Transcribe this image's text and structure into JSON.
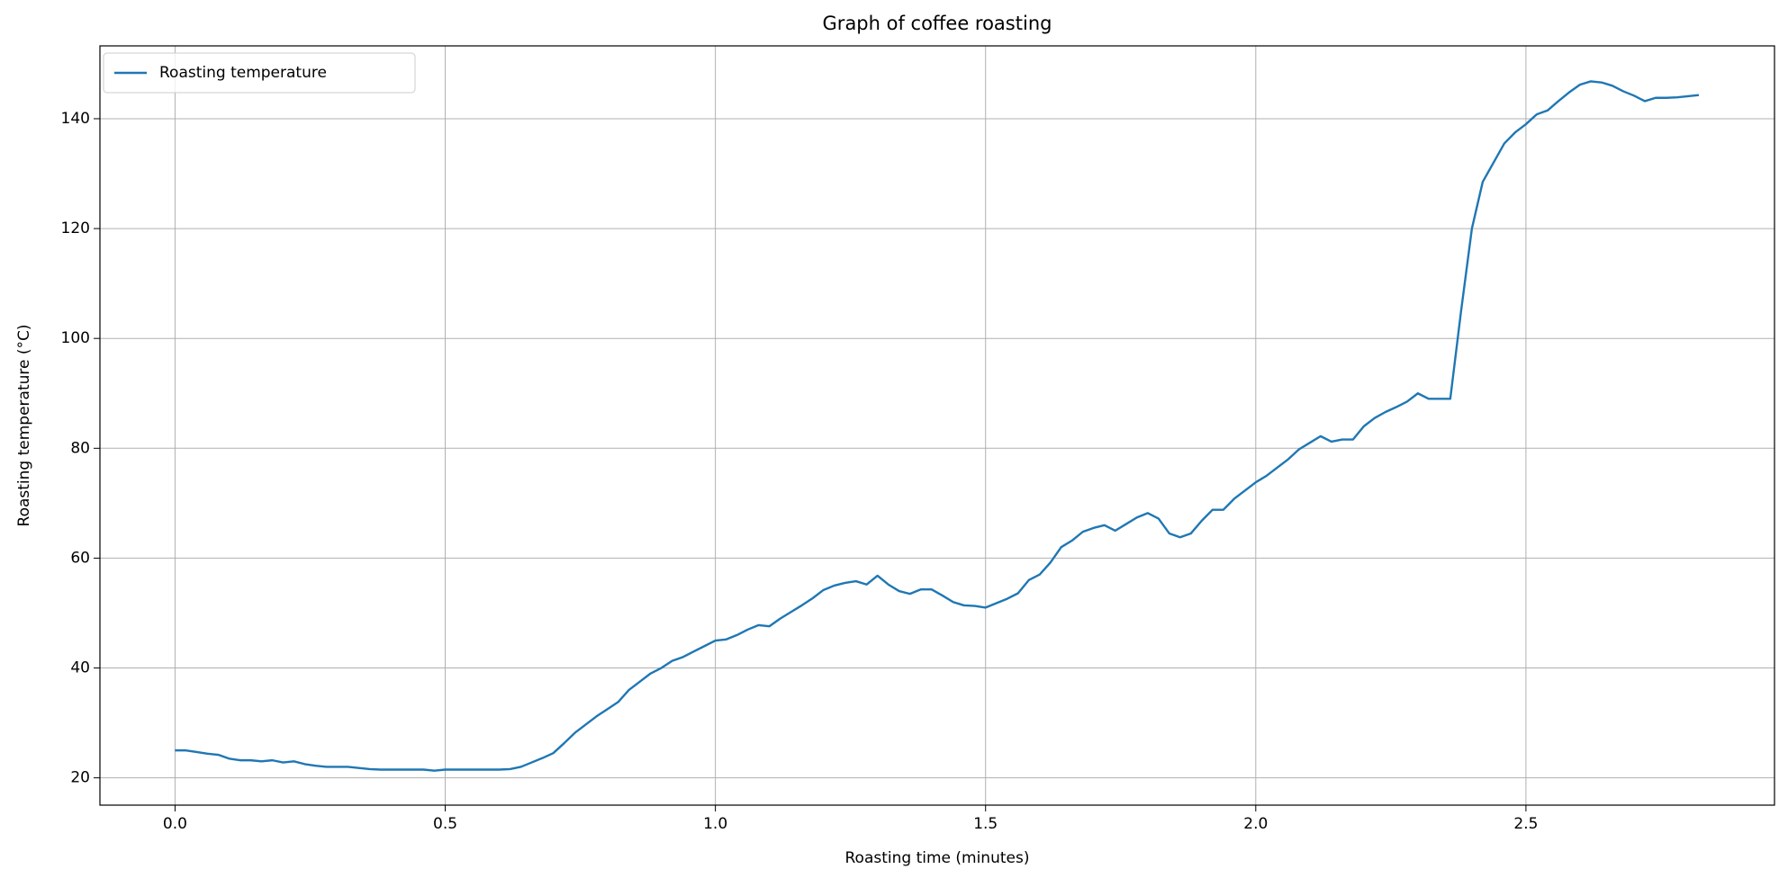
{
  "chart_data": {
    "type": "line",
    "title": "Graph of coffee roasting",
    "x_label": "Roasting time (minutes)",
    "y_label": "Roasting temperature (°C)",
    "x": [
      0,
      0.02,
      0.04,
      0.06,
      0.08,
      0.1,
      0.12,
      0.14,
      0.16,
      0.18,
      0.2,
      0.22,
      0.24,
      0.26,
      0.28,
      0.3,
      0.32,
      0.34,
      0.36,
      0.38,
      0.4,
      0.42,
      0.44,
      0.46,
      0.48,
      0.5,
      0.52,
      0.54,
      0.56,
      0.58,
      0.6,
      0.62,
      0.64,
      0.66,
      0.68,
      0.7,
      0.72,
      0.74,
      0.76,
      0.78,
      0.8,
      0.82,
      0.84,
      0.86,
      0.88,
      0.9,
      0.92,
      0.94,
      0.96,
      0.98,
      1,
      1.02,
      1.04,
      1.06,
      1.08,
      1.1,
      1.12,
      1.14,
      1.16,
      1.18,
      1.2,
      1.22,
      1.24,
      1.26,
      1.28,
      1.3,
      1.32,
      1.34,
      1.36,
      1.38,
      1.4,
      1.42,
      1.44,
      1.46,
      1.48,
      1.5,
      1.52,
      1.54,
      1.56,
      1.58,
      1.6,
      1.62,
      1.64,
      1.66,
      1.68,
      1.7,
      1.72,
      1.74,
      1.76,
      1.78,
      1.8,
      1.82,
      1.84,
      1.86,
      1.88,
      1.9,
      1.92,
      1.94,
      1.96,
      1.98,
      2,
      2.02,
      2.04,
      2.06,
      2.08,
      2.1,
      2.12,
      2.14,
      2.16,
      2.18,
      2.2,
      2.22,
      2.24,
      2.26,
      2.28,
      2.3,
      2.32,
      2.34,
      2.36,
      2.38,
      2.4,
      2.42,
      2.44,
      2.46,
      2.48,
      2.5,
      2.52,
      2.54,
      2.56,
      2.58,
      2.6,
      2.62,
      2.64,
      2.66,
      2.68,
      2.7,
      2.72,
      2.74,
      2.76,
      2.78,
      2.8,
      2.82
    ],
    "series": [
      {
        "name": "Roasting temperature",
        "color": "#1f77b4",
        "values": [
          25,
          25,
          24.7,
          24.4,
          24.2,
          23.5,
          23.2,
          23.2,
          23,
          23.2,
          22.8,
          23,
          22.5,
          22.2,
          22,
          22,
          22,
          21.8,
          21.6,
          21.5,
          21.5,
          21.5,
          21.5,
          21.5,
          21.3,
          21.5,
          21.5,
          21.5,
          21.5,
          21.5,
          21.5,
          21.6,
          22,
          22.8,
          23.6,
          24.5,
          26.3,
          28.2,
          29.7,
          31.2,
          32.5,
          33.8,
          36,
          37.5,
          39,
          40,
          41.3,
          42,
          43,
          44,
          45,
          45.2,
          46,
          47,
          47.8,
          47.6,
          49,
          50.2,
          51.4,
          52.7,
          54.2,
          55,
          55.5,
          55.8,
          55.2,
          56.8,
          55.2,
          54,
          53.5,
          54.3,
          54.3,
          53.2,
          52,
          51.4,
          51.3,
          51,
          51.8,
          52.6,
          53.6,
          56,
          57,
          59.2,
          62,
          63.2,
          64.8,
          65.5,
          66,
          65,
          66.2,
          67.4,
          68.2,
          67.2,
          64.5,
          63.8,
          64.5,
          66.8,
          68.8,
          68.8,
          70.8,
          72.3,
          73.8,
          75,
          76.5,
          78,
          79.8,
          81,
          82.2,
          81.2,
          81.6,
          81.6,
          84,
          85.5,
          86.6,
          87.5,
          88.5,
          90,
          89,
          89,
          89,
          105,
          120,
          128.5,
          132,
          135.5,
          137.5,
          139,
          140.8,
          141.5,
          143.2,
          144.8,
          146.2,
          146.8,
          146.6,
          146,
          145,
          144.2,
          143.2,
          143.8,
          143.8,
          143.9,
          144.1,
          144.3
        ]
      }
    ],
    "xlim": [
      -0.139,
      2.96
    ],
    "ylim": [
      15.03,
      153.26
    ],
    "xticks": [
      {
        "value": 0,
        "label": "0.0"
      },
      0.5,
      {
        "value": 1,
        "label": "1.0"
      },
      1.5,
      {
        "value": 2,
        "label": "2.0"
      },
      2.5
    ],
    "yticks": [
      20,
      40,
      60,
      80,
      100,
      120,
      140
    ],
    "grid": true,
    "legend": "upper left"
  }
}
